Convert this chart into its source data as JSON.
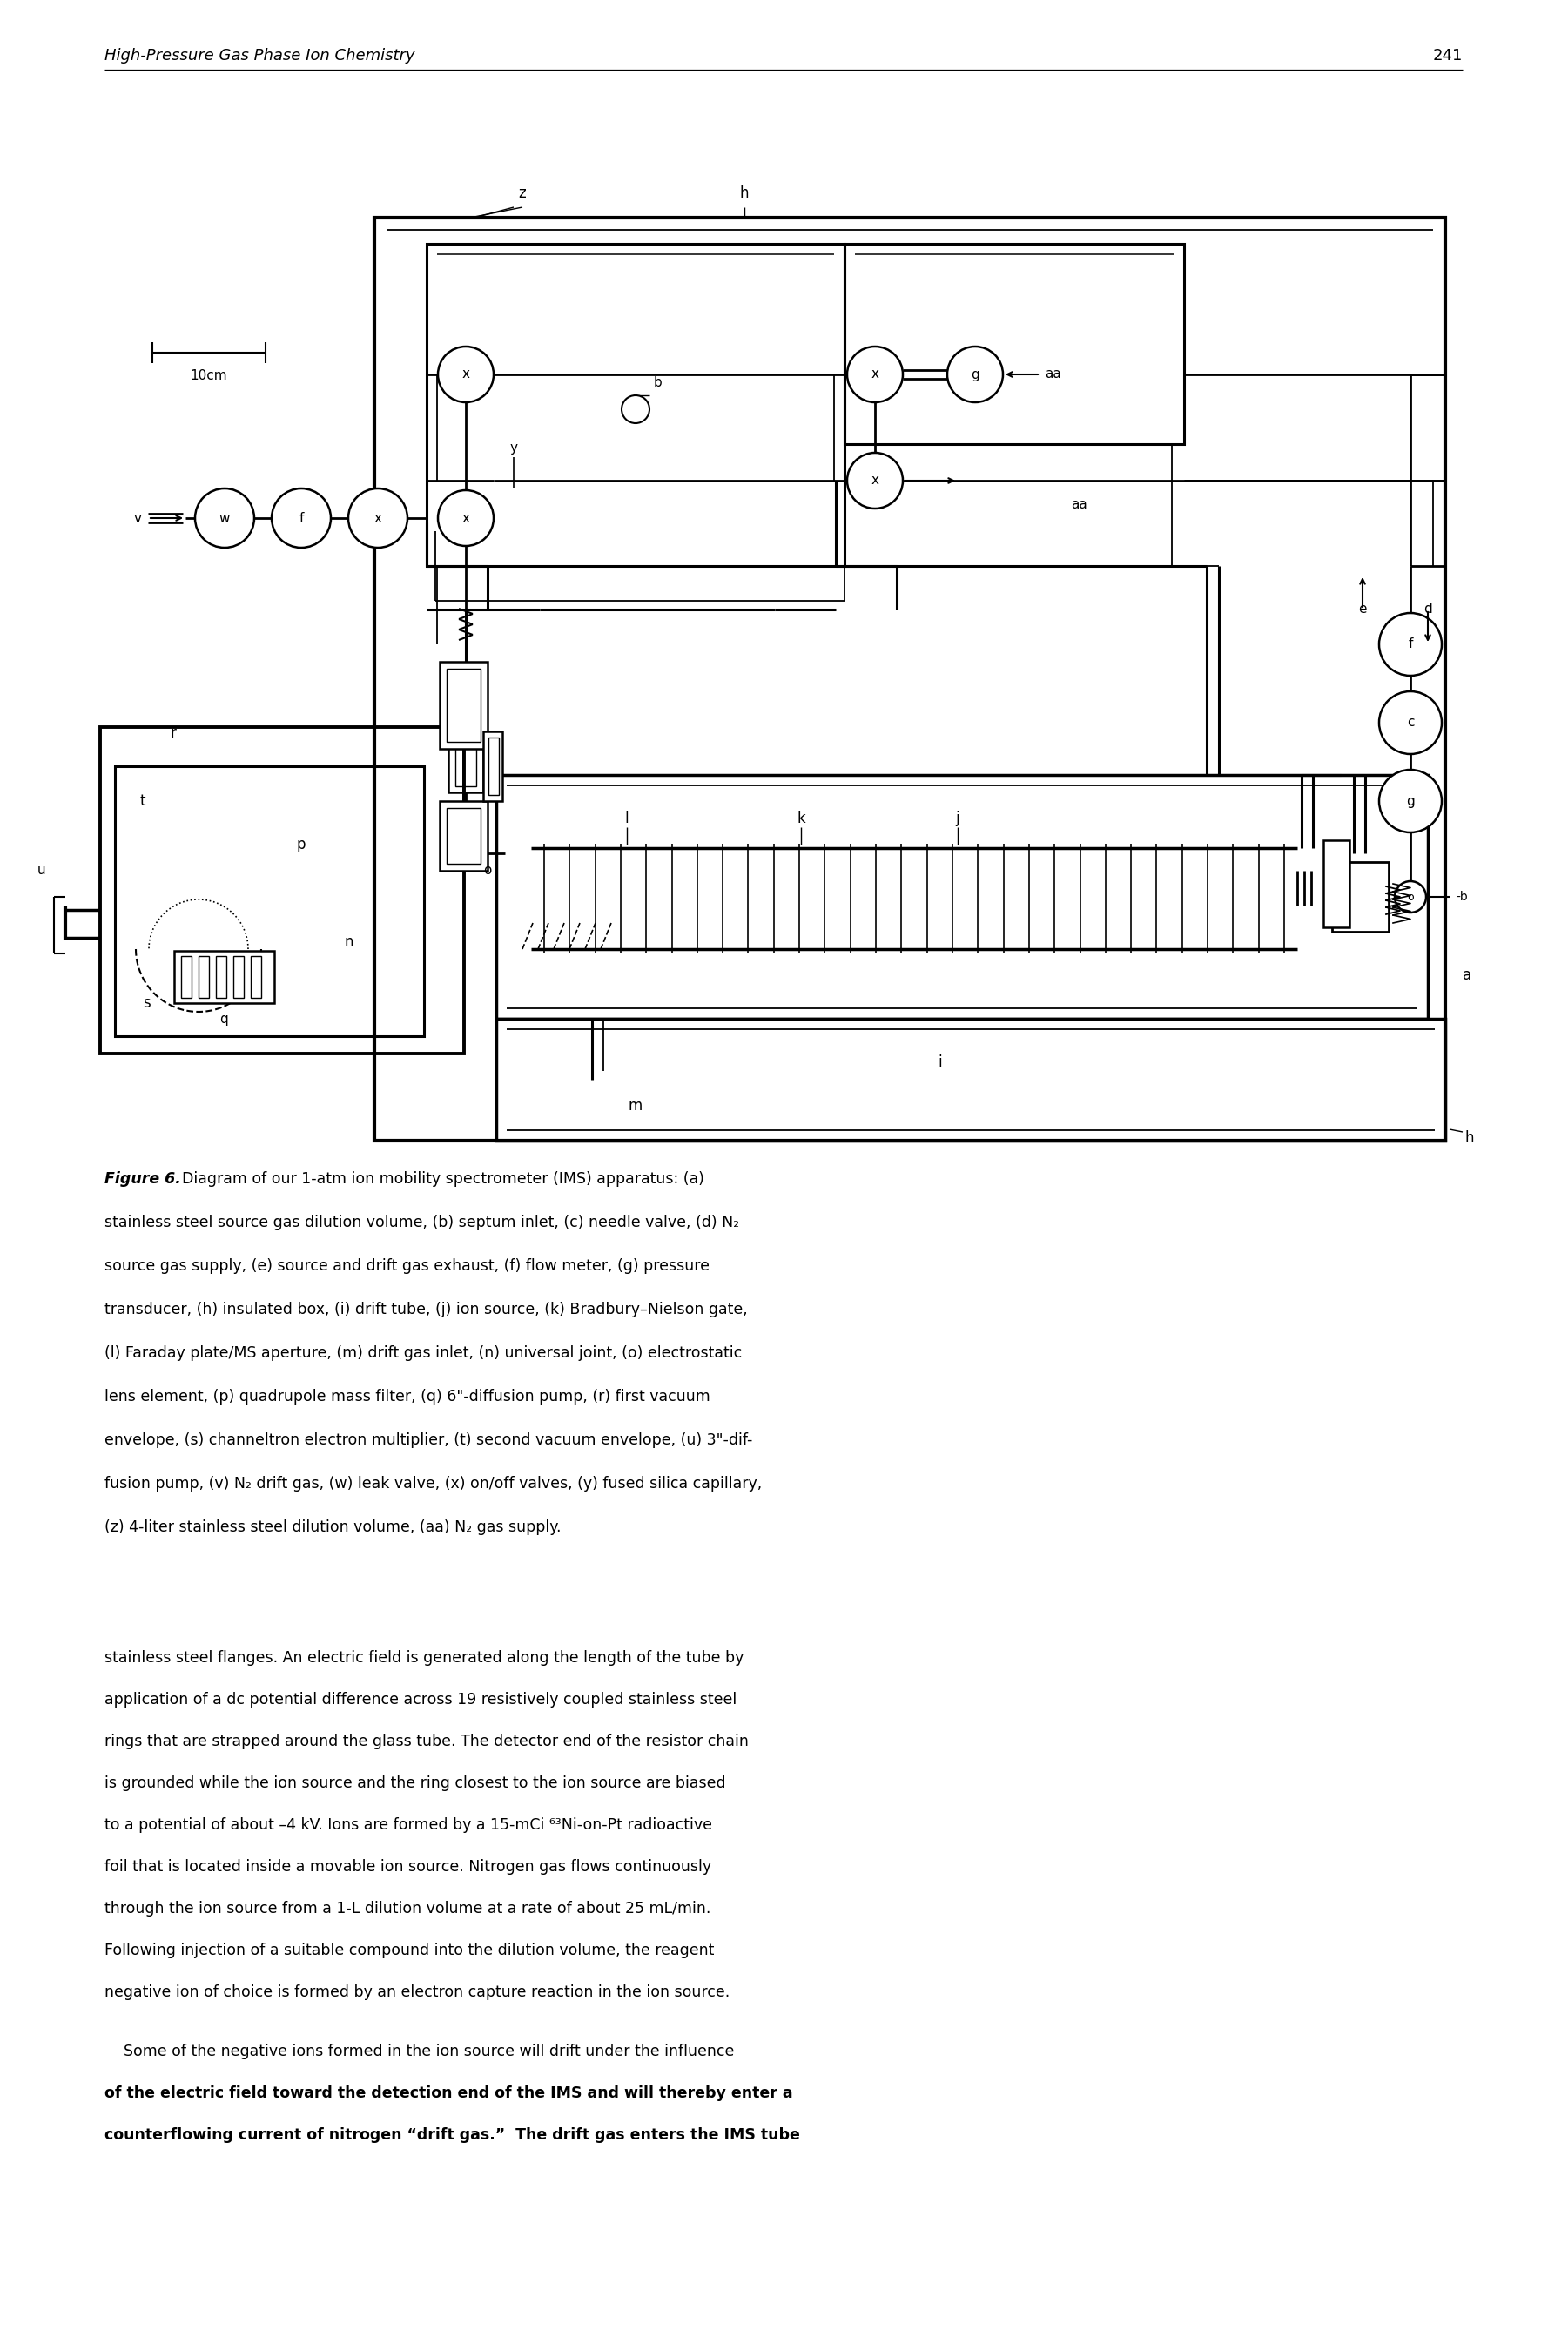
{
  "header_italic": "High-Pressure Gas Phase Ion Chemistry",
  "page_number": "241",
  "caption_bold": "Figure 6.",
  "caption_rest": "  Diagram of our 1-atm ion mobility spectrometer (IMS) apparatus: (a)\nstainless steel source gas dilution volume, (b) septum inlet, (c) needle valve, (d) N₂\nsource gas supply, (e) source and drift gas exhaust, (f) flow meter, (g) pressure\ntransducer, (h) insulated box, (i) drift tube, (j) ion source, (k) Bradbury–Nielson gate,\n(l) Faraday plate/MS aperture, (m) drift gas inlet, (n) universal joint, (o) electrostatic\nlens element, (p) quadrupole mass filter, (q) 6\"-diffusion pump, (r) first vacuum\nenvelope, (s) channeltron electron multiplier, (t) second vacuum envelope, (u) 3\"-dif-\nfusion pump, (v) N₂ drift gas, (w) leak valve, (x) on/off valves, (y) fused silica capillary,\n(z) 4-liter stainless steel dilution volume, (aa) N₂ gas supply.",
  "body1": "stainless steel flanges. An electric field is generated along the length of the tube by\napplication of a dc potential difference across 19 resistively coupled stainless steel\nrings that are strapped around the glass tube. The detector end of the resistor chain\nis grounded while the ion source and the ring closest to the ion source are biased\nto a potential of about –4 kV. Ions are formed by a 15-mCi ⁶³Ni-on-Pt radioactive\nfoil that is located inside a movable ion source. Nitrogen gas flows continuously\nthrough the ion source from a 1-L dilution volume at a rate of about 25 mL/min.\nFollowing injection of a suitable compound into the dilution volume, the reagent\nnegative ion of choice is formed by an electron capture reaction in the ion source.",
  "body2_normal": "    Some of the negative ions formed in the ion source will drift under the influence",
  "body2_bold": "of the electric field toward the detection end of the IMS and will thereby enter a\ncounterflowing current of nitrogen “drift gas.”  The drift gas enters the IMS tube"
}
